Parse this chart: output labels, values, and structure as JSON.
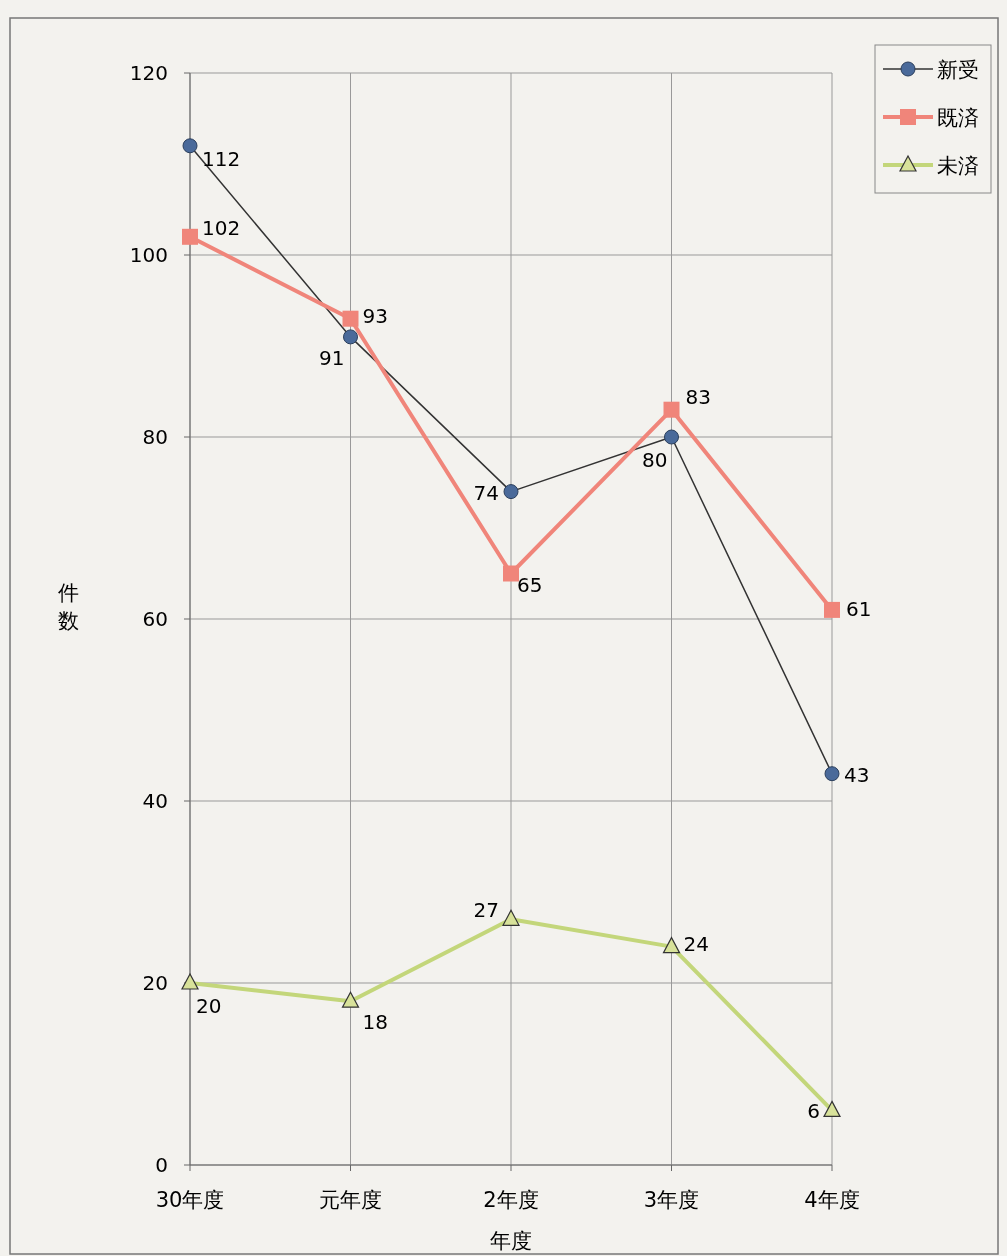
{
  "chart_data": {
    "type": "line",
    "xlabel": "年度",
    "ylabel": "件数",
    "categories": [
      "30年度",
      "元年度",
      "2年度",
      "3年度",
      "4年度"
    ],
    "series": [
      {
        "name": "新受",
        "color": "#4a6a9a",
        "marker": "circle",
        "values": [
          112,
          91,
          74,
          80,
          43
        ]
      },
      {
        "name": "既済",
        "color": "#f0857a",
        "marker": "square",
        "values": [
          102,
          93,
          65,
          83,
          61
        ]
      },
      {
        "name": "未済",
        "color": "#c3d67a",
        "marker": "triangle",
        "values": [
          20,
          18,
          27,
          24,
          6
        ]
      }
    ],
    "ylim": [
      0,
      120
    ],
    "yticks": [
      0,
      20,
      40,
      60,
      80,
      100,
      120
    ],
    "grid": true,
    "legend": "top right",
    "data_labels": true
  }
}
